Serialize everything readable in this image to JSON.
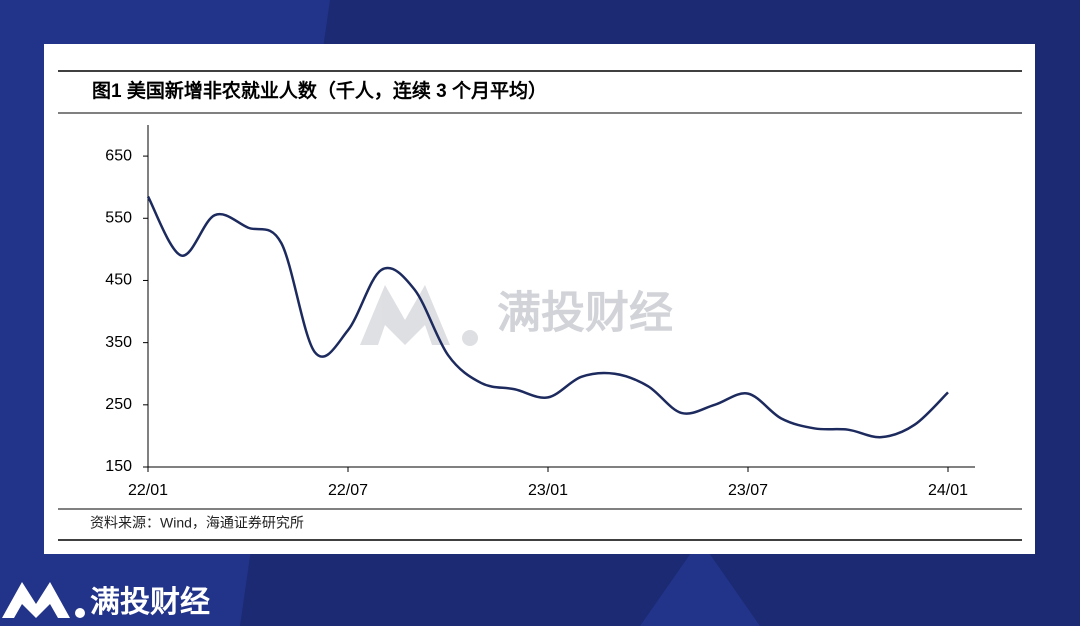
{
  "chart_data": {
    "type": "line",
    "title": "图1  美国新增非农就业人数（千人，连续 3 个月平均）",
    "source": "资料来源：Wind，海通证券研究所",
    "categories": [
      "22/01",
      null,
      null,
      null,
      null,
      null,
      "22/07",
      null,
      null,
      null,
      null,
      null,
      "23/01",
      null,
      null,
      null,
      null,
      null,
      "23/07",
      null,
      null,
      null,
      null,
      null,
      "24/01"
    ],
    "series": [
      {
        "name": "美国新增非农就业人数",
        "color": "#1c2a5e",
        "values": [
          585,
          490,
          555,
          535,
          510,
          335,
          370,
          467,
          435,
          330,
          285,
          275,
          262,
          295,
          300,
          280,
          237,
          250,
          268,
          228,
          212,
          210,
          198,
          218,
          270
        ]
      }
    ],
    "ylim": [
      150,
      700
    ],
    "yticks": [
      150,
      250,
      350,
      450,
      550,
      650
    ]
  },
  "watermark": "满投财经",
  "logo_text": "满投财经"
}
